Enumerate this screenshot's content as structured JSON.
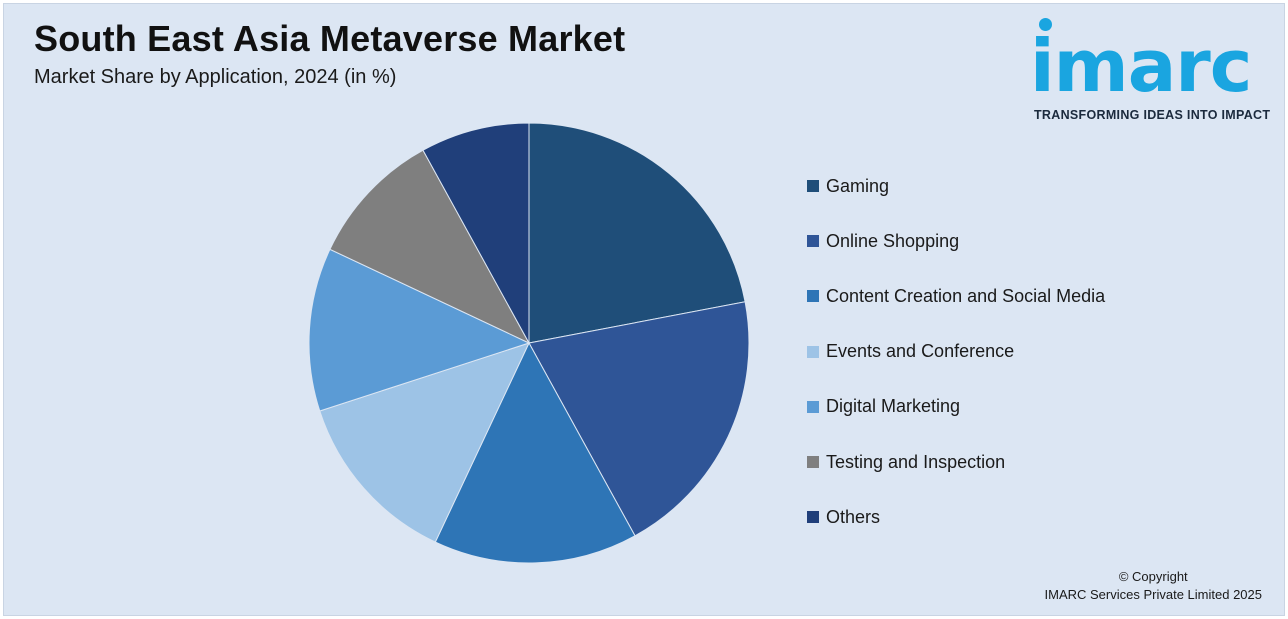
{
  "header": {
    "title": "South East Asia Metaverse Market",
    "subtitle": "Market Share by Application, 2024 (in %)"
  },
  "logo": {
    "wordmark": "imarc",
    "tagline": "TRANSFORMING IDEAS INTO IMPACT",
    "color": "#1aa5e0"
  },
  "chart_data": {
    "type": "pie",
    "title": "South East Asia Metaverse Market",
    "subtitle": "Market Share by Application, 2024 (in %)",
    "start_angle_deg": 0,
    "direction": "clockwise",
    "legend_position": "right",
    "categories": [
      "Gaming",
      "Online Shopping",
      "Content Creation and Social Media",
      "Events and Conference",
      "Digital Marketing",
      "Testing and Inspection",
      "Others"
    ],
    "values": [
      22,
      20,
      15,
      13,
      12,
      10,
      8
    ],
    "colors": [
      "#1f4e79",
      "#2f5597",
      "#2e75b6",
      "#9dc3e6",
      "#5b9bd5",
      "#7f7f7f",
      "#203f7a"
    ]
  },
  "footer": {
    "copyright_line1": "© Copyright",
    "copyright_line2": "IMARC Services Private Limited 2025"
  }
}
